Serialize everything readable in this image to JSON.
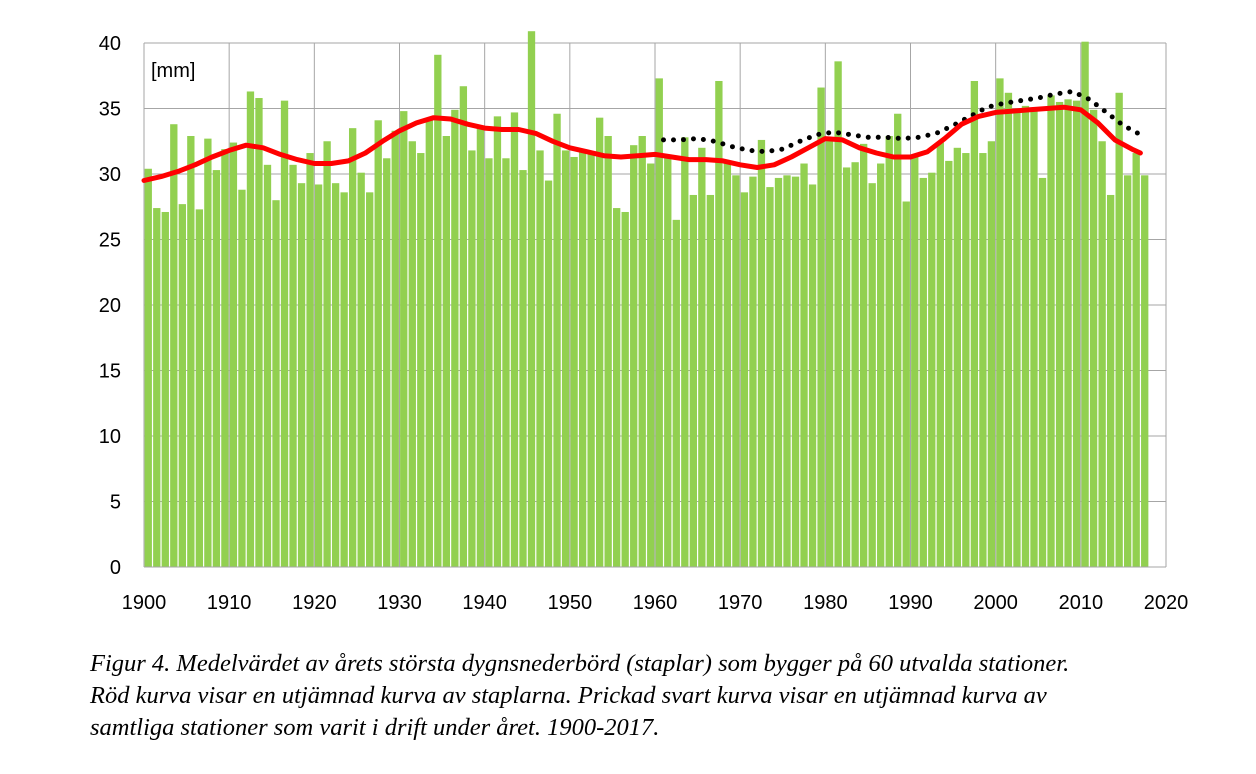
{
  "chart_data": {
    "type": "bar",
    "unit_label": "[mm]",
    "ylim": [
      0,
      40
    ],
    "yticks": [
      0,
      5,
      10,
      15,
      20,
      25,
      30,
      35,
      40
    ],
    "xlim": [
      1900,
      2020
    ],
    "xticks": [
      1900,
      1910,
      1920,
      1930,
      1940,
      1950,
      1960,
      1970,
      1980,
      1990,
      2000,
      2010,
      2020
    ],
    "grid": true,
    "colors": {
      "bars": "#92d050",
      "smooth_60": "#ff0000",
      "smooth_all": "#000000",
      "grid": "#a6a6a6"
    },
    "bars": {
      "x": [
        1900,
        1901,
        1902,
        1903,
        1904,
        1905,
        1906,
        1907,
        1908,
        1909,
        1910,
        1911,
        1912,
        1913,
        1914,
        1915,
        1916,
        1917,
        1918,
        1919,
        1920,
        1921,
        1922,
        1923,
        1924,
        1925,
        1926,
        1927,
        1928,
        1929,
        1930,
        1931,
        1932,
        1933,
        1934,
        1935,
        1936,
        1937,
        1938,
        1939,
        1940,
        1941,
        1942,
        1943,
        1944,
        1945,
        1946,
        1947,
        1948,
        1949,
        1950,
        1951,
        1952,
        1953,
        1954,
        1955,
        1956,
        1957,
        1958,
        1959,
        1960,
        1961,
        1962,
        1963,
        1964,
        1965,
        1966,
        1967,
        1968,
        1969,
        1970,
        1971,
        1972,
        1973,
        1974,
        1975,
        1976,
        1977,
        1978,
        1979,
        1980,
        1981,
        1982,
        1983,
        1984,
        1985,
        1986,
        1987,
        1988,
        1989,
        1990,
        1991,
        1992,
        1993,
        1994,
        1995,
        1996,
        1997,
        1998,
        1999,
        2000,
        2001,
        2002,
        2003,
        2004,
        2005,
        2006,
        2007,
        2008,
        2009,
        2010,
        2011,
        2012,
        2013,
        2014,
        2015,
        2016,
        2017
      ],
      "values": [
        30.4,
        27.4,
        27.1,
        33.8,
        27.7,
        32.9,
        27.3,
        32.7,
        30.3,
        31.9,
        32.4,
        28.8,
        36.3,
        35.8,
        30.7,
        28.0,
        35.6,
        30.7,
        29.3,
        31.6,
        29.2,
        32.5,
        29.3,
        28.6,
        33.5,
        30.1,
        28.6,
        34.1,
        31.2,
        33.3,
        34.8,
        32.5,
        31.6,
        34.2,
        39.1,
        32.9,
        34.9,
        36.7,
        31.8,
        33.5,
        31.2,
        34.4,
        31.2,
        34.7,
        30.3,
        40.9,
        31.8,
        29.5,
        34.6,
        31.8,
        31.3,
        31.9,
        31.6,
        34.3,
        32.9,
        27.4,
        27.1,
        32.2,
        32.9,
        30.8,
        37.3,
        31.4,
        26.5,
        32.8,
        28.4,
        32.0,
        28.4,
        37.1,
        30.9,
        29.9,
        28.6,
        29.8,
        32.6,
        29.0,
        29.7,
        29.9,
        29.8,
        30.8,
        29.2,
        36.6,
        32.7,
        38.6,
        30.5,
        30.9,
        32.3,
        29.3,
        30.8,
        32.9,
        34.6,
        27.9,
        31.4,
        29.7,
        30.1,
        32.4,
        31.0,
        32.0,
        31.6,
        37.1,
        31.6,
        32.5,
        37.3,
        36.2,
        35.0,
        35.2,
        34.9,
        29.7,
        36.0,
        35.5,
        35.7,
        35.6,
        40.1,
        34.9,
        32.5,
        28.4,
        36.2,
        29.9,
        31.6,
        29.9
      ]
    },
    "series": [
      {
        "x": [
          1900,
          1902,
          1904,
          1906,
          1908,
          1910,
          1912,
          1914,
          1916,
          1918,
          1920,
          1922,
          1924,
          1926,
          1928,
          1930,
          1932,
          1934,
          1936,
          1938,
          1940,
          1942,
          1944,
          1946,
          1948,
          1950,
          1952,
          1954,
          1956,
          1958,
          1960,
          1962,
          1964,
          1966,
          1968,
          1970,
          1972,
          1974,
          1976,
          1978,
          1980,
          1982,
          1984,
          1986,
          1988,
          1990,
          1992,
          1994,
          1996,
          1998,
          2000,
          2002,
          2004,
          2006,
          2008,
          2010,
          2012,
          2014,
          2016,
          2017
        ],
        "values": [
          29.5,
          29.8,
          30.2,
          30.7,
          31.3,
          31.8,
          32.2,
          32.0,
          31.5,
          31.1,
          30.8,
          30.8,
          31.0,
          31.6,
          32.5,
          33.3,
          33.9,
          34.3,
          34.2,
          33.8,
          33.5,
          33.4,
          33.4,
          33.1,
          32.5,
          32.0,
          31.7,
          31.4,
          31.3,
          31.4,
          31.5,
          31.3,
          31.1,
          31.1,
          31.0,
          30.7,
          30.5,
          30.7,
          31.3,
          32.0,
          32.7,
          32.6,
          32.0,
          31.6,
          31.3,
          31.3,
          31.7,
          32.7,
          33.8,
          34.4,
          34.7,
          34.8,
          34.9,
          35.0,
          35.1,
          34.9,
          33.9,
          32.6,
          31.9,
          31.6
        ]
      },
      {
        "x": [
          1961,
          1963,
          1965,
          1967,
          1969,
          1971,
          1973,
          1975,
          1977,
          1979,
          1981,
          1983,
          1985,
          1987,
          1989,
          1991,
          1993,
          1995,
          1997,
          1999,
          2001,
          2003,
          2005,
          2007,
          2009,
          2011,
          2013,
          2015,
          2017
        ],
        "values": [
          32.6,
          32.6,
          32.7,
          32.5,
          32.1,
          31.8,
          31.7,
          31.9,
          32.5,
          33.0,
          33.2,
          33.0,
          32.8,
          32.8,
          32.7,
          32.8,
          33.1,
          33.7,
          34.4,
          35.1,
          35.4,
          35.6,
          35.8,
          36.1,
          36.3,
          35.7,
          34.7,
          33.7,
          33.0
        ]
      }
    ]
  },
  "caption": {
    "line1": "Figur 4. Medelvärdet av årets största dygnsnederbörd (staplar) som bygger på 60 utvalda stationer.",
    "line2": "Röd kurva visar en utjämnad kurva av staplarna. Prickad svart kurva visar en utjämnad kurva av",
    "line3": "samtliga stationer som varit i drift under året. 1900-2017."
  }
}
